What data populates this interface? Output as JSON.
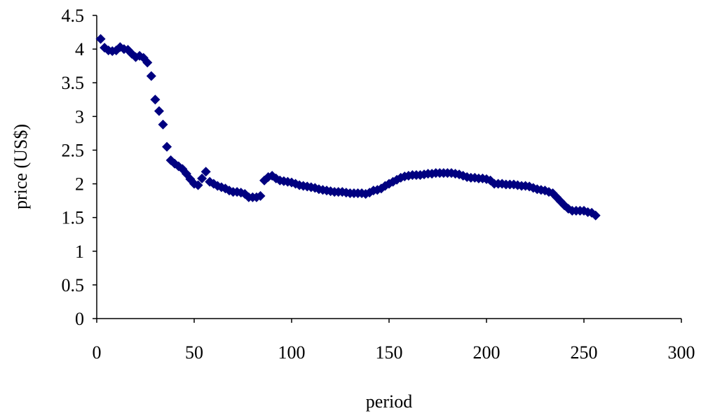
{
  "chart_data": {
    "type": "scatter",
    "x_label": "period",
    "y_label": "price (US$)",
    "color": "#000080",
    "marker": "diamond",
    "grid": false,
    "xlim": [
      0,
      300
    ],
    "xticks": [
      0,
      50,
      100,
      150,
      200,
      250,
      300
    ],
    "ylim": [
      0,
      4.5
    ],
    "yticks": [
      0,
      0.5,
      1,
      1.5,
      2,
      2.5,
      3,
      3.5,
      4,
      4.5
    ],
    "x": [
      2,
      4,
      6,
      8,
      10,
      12,
      14,
      16,
      18,
      20,
      22,
      24,
      26,
      28,
      30,
      32,
      34,
      36,
      38,
      40,
      42,
      44,
      46,
      48,
      50,
      52,
      54,
      56,
      58,
      60,
      62,
      64,
      66,
      68,
      70,
      72,
      74,
      76,
      78,
      80,
      82,
      84,
      86,
      88,
      90,
      92,
      94,
      96,
      98,
      100,
      102,
      104,
      106,
      108,
      110,
      112,
      114,
      116,
      118,
      120,
      122,
      124,
      126,
      128,
      130,
      132,
      134,
      136,
      138,
      140,
      142,
      144,
      146,
      148,
      150,
      152,
      154,
      156,
      158,
      160,
      162,
      164,
      166,
      168,
      170,
      172,
      174,
      176,
      178,
      180,
      182,
      184,
      186,
      188,
      190,
      192,
      194,
      196,
      198,
      200,
      202,
      204,
      206,
      208,
      210,
      212,
      214,
      216,
      218,
      220,
      222,
      224,
      226,
      228,
      230,
      232,
      234,
      236,
      238,
      240,
      242,
      244,
      246,
      248,
      250,
      252,
      254,
      256
    ],
    "values": [
      4.15,
      4.02,
      3.98,
      3.97,
      3.98,
      4.03,
      4.0,
      3.99,
      3.93,
      3.88,
      3.9,
      3.87,
      3.8,
      3.6,
      3.25,
      3.08,
      2.88,
      2.55,
      2.35,
      2.3,
      2.26,
      2.22,
      2.15,
      2.07,
      2.0,
      1.98,
      2.08,
      2.18,
      2.03,
      2.0,
      1.97,
      1.95,
      1.93,
      1.9,
      1.88,
      1.88,
      1.87,
      1.85,
      1.8,
      1.8,
      1.8,
      1.82,
      2.05,
      2.1,
      2.12,
      2.08,
      2.05,
      2.04,
      2.03,
      2.02,
      2.0,
      1.98,
      1.97,
      1.96,
      1.95,
      1.94,
      1.92,
      1.91,
      1.9,
      1.89,
      1.88,
      1.88,
      1.88,
      1.87,
      1.86,
      1.86,
      1.86,
      1.86,
      1.85,
      1.87,
      1.9,
      1.91,
      1.93,
      1.97,
      2.0,
      2.03,
      2.06,
      2.09,
      2.11,
      2.12,
      2.13,
      2.13,
      2.13,
      2.14,
      2.15,
      2.15,
      2.16,
      2.16,
      2.16,
      2.16,
      2.16,
      2.15,
      2.14,
      2.12,
      2.1,
      2.09,
      2.09,
      2.08,
      2.08,
      2.07,
      2.05,
      2.0,
      2.0,
      2.0,
      1.99,
      1.99,
      1.99,
      1.98,
      1.97,
      1.97,
      1.96,
      1.94,
      1.92,
      1.91,
      1.9,
      1.88,
      1.86,
      1.8,
      1.74,
      1.68,
      1.63,
      1.6,
      1.6,
      1.6,
      1.6,
      1.58,
      1.57,
      1.53
    ]
  }
}
